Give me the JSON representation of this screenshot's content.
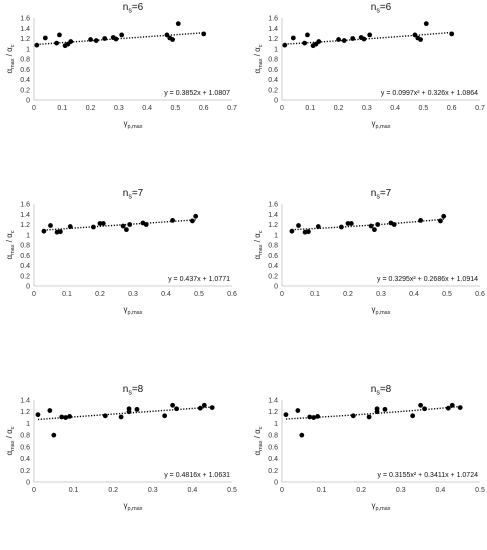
{
  "chart_data": [
    {
      "type": "scatter",
      "title": "nₛ=6",
      "xlabel": "γp,max",
      "ylabel": "αmax / αc",
      "xlim": [
        0,
        0.7
      ],
      "ylim": [
        0,
        1.6
      ],
      "xticks": [
        "0",
        "0.1",
        "0.2",
        "0.3",
        "0.4",
        "0.5",
        "0.6",
        "0.7"
      ],
      "yticks": [
        "0",
        "0.2",
        "0.4",
        "0.6",
        "0.8",
        "1",
        "1.2",
        "1.4",
        "1.6"
      ],
      "x": [
        0.01,
        0.04,
        0.08,
        0.09,
        0.11,
        0.12,
        0.13,
        0.2,
        0.22,
        0.25,
        0.28,
        0.29,
        0.31,
        0.47,
        0.48,
        0.49,
        0.51,
        0.6
      ],
      "y": [
        1.07,
        1.21,
        1.11,
        1.27,
        1.06,
        1.09,
        1.14,
        1.18,
        1.16,
        1.2,
        1.22,
        1.19,
        1.27,
        1.27,
        1.21,
        1.18,
        1.49,
        1.29
      ],
      "trendline": {
        "kind": "linear",
        "coef": [
          0.3852,
          1.0807
        ]
      },
      "equation": "y = 0.3852x + 1.0807"
    },
    {
      "type": "scatter",
      "title": "nₛ=6",
      "xlabel": "γp,max",
      "ylabel": "αmax / αc",
      "xlim": [
        0,
        0.7
      ],
      "ylim": [
        0,
        1.6
      ],
      "xticks": [
        "0",
        "0.1",
        "0.2",
        "0.3",
        "0.4",
        "0.5",
        "0.6",
        "0.7"
      ],
      "yticks": [
        "0",
        "0.2",
        "0.4",
        "0.6",
        "0.8",
        "1",
        "1.2",
        "1.4",
        "1.6"
      ],
      "x": [
        0.01,
        0.04,
        0.08,
        0.09,
        0.11,
        0.12,
        0.13,
        0.2,
        0.22,
        0.25,
        0.28,
        0.29,
        0.31,
        0.47,
        0.48,
        0.49,
        0.51,
        0.6
      ],
      "y": [
        1.07,
        1.21,
        1.11,
        1.27,
        1.06,
        1.09,
        1.14,
        1.18,
        1.16,
        1.2,
        1.22,
        1.19,
        1.27,
        1.27,
        1.21,
        1.18,
        1.49,
        1.29
      ],
      "trendline": {
        "kind": "poly2",
        "coef": [
          0.0997,
          0.326,
          1.0864
        ]
      },
      "equation": "y = 0.0997x² + 0.326x + 1.0864"
    },
    {
      "type": "scatter",
      "title": "nₛ=7",
      "xlabel": "γp,max",
      "ylabel": "αmax / αc",
      "xlim": [
        0,
        0.6
      ],
      "ylim": [
        0,
        1.6
      ],
      "xticks": [
        "0",
        "0.1",
        "0.2",
        "0.3",
        "0.4",
        "0.5",
        "0.6"
      ],
      "yticks": [
        "0",
        "0.2",
        "0.4",
        "0.6",
        "0.8",
        "1",
        "1.2",
        "1.4",
        "1.6"
      ],
      "x": [
        0.03,
        0.05,
        0.07,
        0.08,
        0.11,
        0.18,
        0.2,
        0.21,
        0.27,
        0.28,
        0.29,
        0.33,
        0.34,
        0.42,
        0.48,
        0.49
      ],
      "y": [
        1.07,
        1.18,
        1.05,
        1.06,
        1.16,
        1.15,
        1.22,
        1.22,
        1.17,
        1.1,
        1.2,
        1.23,
        1.2,
        1.28,
        1.27,
        1.36
      ],
      "trendline": {
        "kind": "linear",
        "coef": [
          0.437,
          1.0771
        ]
      },
      "equation": "y = 0.437x + 1.0771"
    },
    {
      "type": "scatter",
      "title": "nₛ=7",
      "xlabel": "γp,max",
      "ylabel": "αmax / αc",
      "xlim": [
        0,
        0.6
      ],
      "ylim": [
        0,
        1.6
      ],
      "xticks": [
        "0",
        "0.1",
        "0.2",
        "0.3",
        "0.4",
        "0.5",
        "0.6"
      ],
      "yticks": [
        "0",
        "0.2",
        "0.4",
        "0.6",
        "0.8",
        "1",
        "1.2",
        "1.4",
        "1.6"
      ],
      "x": [
        0.03,
        0.05,
        0.07,
        0.08,
        0.11,
        0.18,
        0.2,
        0.21,
        0.27,
        0.28,
        0.29,
        0.33,
        0.34,
        0.42,
        0.48,
        0.49
      ],
      "y": [
        1.07,
        1.18,
        1.05,
        1.06,
        1.16,
        1.15,
        1.22,
        1.22,
        1.17,
        1.1,
        1.2,
        1.23,
        1.2,
        1.28,
        1.27,
        1.36
      ],
      "trendline": {
        "kind": "poly2",
        "coef": [
          0.3295,
          0.2686,
          1.0914
        ]
      },
      "equation": "y = 0.3295x² + 0.2686x + 1.0914"
    },
    {
      "type": "scatter",
      "title": "nₛ=8",
      "xlabel": "γp,max",
      "ylabel": "αmax / αc",
      "xlim": [
        0,
        0.5
      ],
      "ylim": [
        0,
        1.4
      ],
      "xticks": [
        "0",
        "0.1",
        "0.2",
        "0.3",
        "0.4",
        "0.5"
      ],
      "yticks": [
        "0",
        "0.2",
        "0.4",
        "0.6",
        "0.8",
        "1",
        "1.2",
        "1.4"
      ],
      "x": [
        0.01,
        0.04,
        0.05,
        0.07,
        0.08,
        0.09,
        0.18,
        0.22,
        0.24,
        0.24,
        0.26,
        0.33,
        0.35,
        0.36,
        0.42,
        0.43,
        0.45
      ],
      "y": [
        1.15,
        1.22,
        0.8,
        1.11,
        1.1,
        1.12,
        1.13,
        1.11,
        1.2,
        1.25,
        1.24,
        1.13,
        1.31,
        1.25,
        1.26,
        1.31,
        1.27
      ],
      "trendline": {
        "kind": "linear",
        "coef": [
          0.4816,
          1.0631
        ]
      },
      "equation": "y = 0.4816x + 1.0631"
    },
    {
      "type": "scatter",
      "title": "nₛ=8",
      "xlabel": "γp,max",
      "ylabel": "αmax / αc",
      "xlim": [
        0,
        0.5
      ],
      "ylim": [
        0,
        1.4
      ],
      "xticks": [
        "0",
        "0.1",
        "0.2",
        "0.3",
        "0.4",
        "0.5"
      ],
      "yticks": [
        "0",
        "0.2",
        "0.4",
        "0.6",
        "0.8",
        "1",
        "1.2",
        "1.4"
      ],
      "x": [
        0.01,
        0.04,
        0.05,
        0.07,
        0.08,
        0.09,
        0.18,
        0.22,
        0.24,
        0.24,
        0.26,
        0.33,
        0.35,
        0.36,
        0.42,
        0.43,
        0.45
      ],
      "y": [
        1.15,
        1.22,
        0.8,
        1.11,
        1.1,
        1.12,
        1.13,
        1.11,
        1.2,
        1.25,
        1.24,
        1.13,
        1.31,
        1.25,
        1.26,
        1.31,
        1.27
      ],
      "trendline": {
        "kind": "poly2",
        "coef": [
          0.3155,
          0.3411,
          1.0724
        ]
      },
      "equation": "y = 0.3155x² + 0.3411x + 1.0724"
    }
  ]
}
